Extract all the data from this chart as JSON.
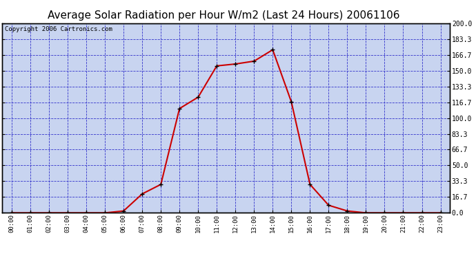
{
  "title": "Average Solar Radiation per Hour W/m2 (Last 24 Hours) 20061106",
  "copyright": "Copyright 2006 Cartronics.com",
  "hours": [
    0,
    1,
    2,
    3,
    4,
    5,
    6,
    7,
    8,
    9,
    10,
    11,
    12,
    13,
    14,
    15,
    16,
    17,
    18,
    19,
    20,
    21,
    22,
    23
  ],
  "values": [
    0,
    0,
    0,
    0,
    0,
    0,
    2,
    20,
    30,
    110,
    122,
    155,
    157,
    160,
    172,
    117,
    30,
    8,
    2,
    0,
    0,
    0,
    0,
    0
  ],
  "x_labels": [
    "00:00",
    "01:00",
    "02:00",
    "03:00",
    "04:00",
    "05:00",
    "06:00",
    "07:00",
    "08:00",
    "09:00",
    "10:00",
    "11:00",
    "12:00",
    "13:00",
    "14:00",
    "15:00",
    "16:00",
    "17:00",
    "18:00",
    "19:00",
    "20:00",
    "21:00",
    "22:00",
    "23:00"
  ],
  "y_ticks": [
    0.0,
    16.7,
    33.3,
    50.0,
    66.7,
    83.3,
    100.0,
    116.7,
    133.3,
    150.0,
    166.7,
    183.3,
    200.0
  ],
  "y_tick_labels": [
    "0.0",
    "16.7",
    "33.3",
    "50.0",
    "66.7",
    "83.3",
    "100.0",
    "116.7",
    "133.3",
    "150.0",
    "166.7",
    "183.3",
    "200.0"
  ],
  "ylim": [
    0,
    200
  ],
  "line_color": "#cc0000",
  "marker_color": "#000000",
  "bg_color": "#ffffff",
  "plot_bg_color": "#c8d4f0",
  "grid_color": "#3333cc",
  "border_color": "#000000",
  "title_fontsize": 11,
  "copyright_fontsize": 6.5
}
